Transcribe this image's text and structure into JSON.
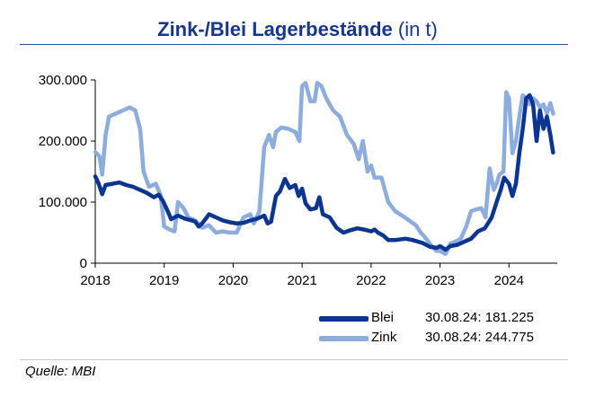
{
  "header": {
    "title_bold": "Zink-/Blei Lagerbestände",
    "title_unit": "(in t)"
  },
  "footer": {
    "source": "Quelle: MBI"
  },
  "legend": [
    {
      "name": "Blei",
      "value": "30.08.24: 181.225"
    },
    {
      "name": "Zink",
      "value": "30.08.24: 244.775"
    }
  ],
  "colors": {
    "blei": "#0a3592",
    "zink": "#8cadde",
    "title": "#17378f",
    "axis": "#000000"
  },
  "chart_data": {
    "type": "line",
    "title": "Zink-/Blei Lagerbestände (in t)",
    "xlabel": "",
    "ylabel": "",
    "xlim": [
      2018.0,
      2024.7
    ],
    "ylim": [
      0,
      300000
    ],
    "y_ticks": [
      "0",
      "100.000",
      "200.000",
      "300.000"
    ],
    "x_ticks": [
      "2018",
      "2019",
      "2020",
      "2021",
      "2022",
      "2023",
      "2024"
    ],
    "grid": false,
    "legend_position": "bottom-right",
    "series": [
      {
        "name": "Blei",
        "color": "#0a3592",
        "points": [
          [
            2018.0,
            142000
          ],
          [
            2018.05,
            130000
          ],
          [
            2018.1,
            113000
          ],
          [
            2018.15,
            128000
          ],
          [
            2018.25,
            130000
          ],
          [
            2018.35,
            132000
          ],
          [
            2018.45,
            128000
          ],
          [
            2018.55,
            125000
          ],
          [
            2018.65,
            120000
          ],
          [
            2018.75,
            115000
          ],
          [
            2018.85,
            108000
          ],
          [
            2018.92,
            112000
          ],
          [
            2018.98,
            102000
          ],
          [
            2019.05,
            85000
          ],
          [
            2019.1,
            72000
          ],
          [
            2019.2,
            78000
          ],
          [
            2019.3,
            73000
          ],
          [
            2019.4,
            70000
          ],
          [
            2019.45,
            68000
          ],
          [
            2019.5,
            60000
          ],
          [
            2019.55,
            65000
          ],
          [
            2019.65,
            80000
          ],
          [
            2019.75,
            75000
          ],
          [
            2019.85,
            70000
          ],
          [
            2019.95,
            67000
          ],
          [
            2020.05,
            65000
          ],
          [
            2020.15,
            66000
          ],
          [
            2020.25,
            70000
          ],
          [
            2020.35,
            73000
          ],
          [
            2020.45,
            78000
          ],
          [
            2020.5,
            65000
          ],
          [
            2020.55,
            68000
          ],
          [
            2020.62,
            110000
          ],
          [
            2020.68,
            118000
          ],
          [
            2020.75,
            138000
          ],
          [
            2020.82,
            123000
          ],
          [
            2020.9,
            128000
          ],
          [
            2020.95,
            110000
          ],
          [
            2021.0,
            122000
          ],
          [
            2021.05,
            98000
          ],
          [
            2021.12,
            88000
          ],
          [
            2021.2,
            90000
          ],
          [
            2021.25,
            108000
          ],
          [
            2021.3,
            80000
          ],
          [
            2021.4,
            75000
          ],
          [
            2021.5,
            58000
          ],
          [
            2021.6,
            50000
          ],
          [
            2021.7,
            54000
          ],
          [
            2021.8,
            57000
          ],
          [
            2021.9,
            55000
          ],
          [
            2022.0,
            52000
          ],
          [
            2022.05,
            55000
          ],
          [
            2022.1,
            50000
          ],
          [
            2022.18,
            45000
          ],
          [
            2022.25,
            38000
          ],
          [
            2022.35,
            38000
          ],
          [
            2022.5,
            40000
          ],
          [
            2022.6,
            38000
          ],
          [
            2022.75,
            33000
          ],
          [
            2022.85,
            27000
          ],
          [
            2022.95,
            25000
          ],
          [
            2023.0,
            28000
          ],
          [
            2023.08,
            22000
          ],
          [
            2023.15,
            28000
          ],
          [
            2023.25,
            30000
          ],
          [
            2023.35,
            35000
          ],
          [
            2023.45,
            40000
          ],
          [
            2023.55,
            52000
          ],
          [
            2023.65,
            57000
          ],
          [
            2023.75,
            75000
          ],
          [
            2023.82,
            100000
          ],
          [
            2023.88,
            120000
          ],
          [
            2023.93,
            140000
          ],
          [
            2024.0,
            130000
          ],
          [
            2024.05,
            110000
          ],
          [
            2024.1,
            130000
          ],
          [
            2024.15,
            180000
          ],
          [
            2024.2,
            220000
          ],
          [
            2024.25,
            270000
          ],
          [
            2024.3,
            275000
          ],
          [
            2024.35,
            260000
          ],
          [
            2024.4,
            200000
          ],
          [
            2024.45,
            250000
          ],
          [
            2024.5,
            220000
          ],
          [
            2024.55,
            240000
          ],
          [
            2024.6,
            210000
          ],
          [
            2024.64,
            181225
          ]
        ]
      },
      {
        "name": "Zink",
        "color": "#8cadde",
        "points": [
          [
            2018.0,
            182000
          ],
          [
            2018.06,
            175000
          ],
          [
            2018.1,
            145000
          ],
          [
            2018.15,
            210000
          ],
          [
            2018.2,
            240000
          ],
          [
            2018.3,
            245000
          ],
          [
            2018.4,
            250000
          ],
          [
            2018.5,
            255000
          ],
          [
            2018.58,
            250000
          ],
          [
            2018.65,
            220000
          ],
          [
            2018.7,
            150000
          ],
          [
            2018.78,
            125000
          ],
          [
            2018.88,
            130000
          ],
          [
            2018.95,
            110000
          ],
          [
            2019.0,
            60000
          ],
          [
            2019.08,
            55000
          ],
          [
            2019.15,
            52000
          ],
          [
            2019.2,
            100000
          ],
          [
            2019.28,
            90000
          ],
          [
            2019.35,
            75000
          ],
          [
            2019.45,
            70000
          ],
          [
            2019.55,
            58000
          ],
          [
            2019.65,
            62000
          ],
          [
            2019.75,
            50000
          ],
          [
            2019.85,
            52000
          ],
          [
            2019.95,
            50000
          ],
          [
            2020.05,
            50000
          ],
          [
            2020.15,
            75000
          ],
          [
            2020.25,
            80000
          ],
          [
            2020.3,
            65000
          ],
          [
            2020.38,
            85000
          ],
          [
            2020.45,
            190000
          ],
          [
            2020.52,
            210000
          ],
          [
            2020.58,
            190000
          ],
          [
            2020.62,
            215000
          ],
          [
            2020.7,
            222000
          ],
          [
            2020.8,
            220000
          ],
          [
            2020.9,
            215000
          ],
          [
            2020.96,
            200000
          ],
          [
            2021.0,
            290000
          ],
          [
            2021.05,
            295000
          ],
          [
            2021.12,
            265000
          ],
          [
            2021.18,
            265000
          ],
          [
            2021.22,
            295000
          ],
          [
            2021.28,
            290000
          ],
          [
            2021.35,
            270000
          ],
          [
            2021.45,
            250000
          ],
          [
            2021.55,
            240000
          ],
          [
            2021.65,
            210000
          ],
          [
            2021.75,
            195000
          ],
          [
            2021.82,
            170000
          ],
          [
            2021.88,
            200000
          ],
          [
            2021.95,
            150000
          ],
          [
            2022.0,
            160000
          ],
          [
            2022.05,
            140000
          ],
          [
            2022.15,
            140000
          ],
          [
            2022.25,
            100000
          ],
          [
            2022.35,
            85000
          ],
          [
            2022.45,
            78000
          ],
          [
            2022.55,
            70000
          ],
          [
            2022.65,
            62000
          ],
          [
            2022.72,
            50000
          ],
          [
            2022.8,
            40000
          ],
          [
            2022.88,
            28000
          ],
          [
            2022.95,
            20000
          ],
          [
            2023.0,
            20000
          ],
          [
            2023.08,
            15000
          ],
          [
            2023.15,
            32000
          ],
          [
            2023.22,
            35000
          ],
          [
            2023.3,
            40000
          ],
          [
            2023.38,
            60000
          ],
          [
            2023.45,
            85000
          ],
          [
            2023.52,
            88000
          ],
          [
            2023.6,
            90000
          ],
          [
            2023.66,
            75000
          ],
          [
            2023.72,
            155000
          ],
          [
            2023.78,
            120000
          ],
          [
            2023.82,
            130000
          ],
          [
            2023.86,
            145000
          ],
          [
            2023.92,
            150000
          ],
          [
            2023.96,
            280000
          ],
          [
            2024.0,
            270000
          ],
          [
            2024.05,
            180000
          ],
          [
            2024.1,
            200000
          ],
          [
            2024.15,
            240000
          ],
          [
            2024.2,
            275000
          ],
          [
            2024.25,
            270000
          ],
          [
            2024.3,
            260000
          ],
          [
            2024.35,
            270000
          ],
          [
            2024.4,
            265000
          ],
          [
            2024.45,
            255000
          ],
          [
            2024.5,
            260000
          ],
          [
            2024.55,
            245000
          ],
          [
            2024.6,
            262000
          ],
          [
            2024.64,
            244775
          ]
        ]
      }
    ]
  }
}
